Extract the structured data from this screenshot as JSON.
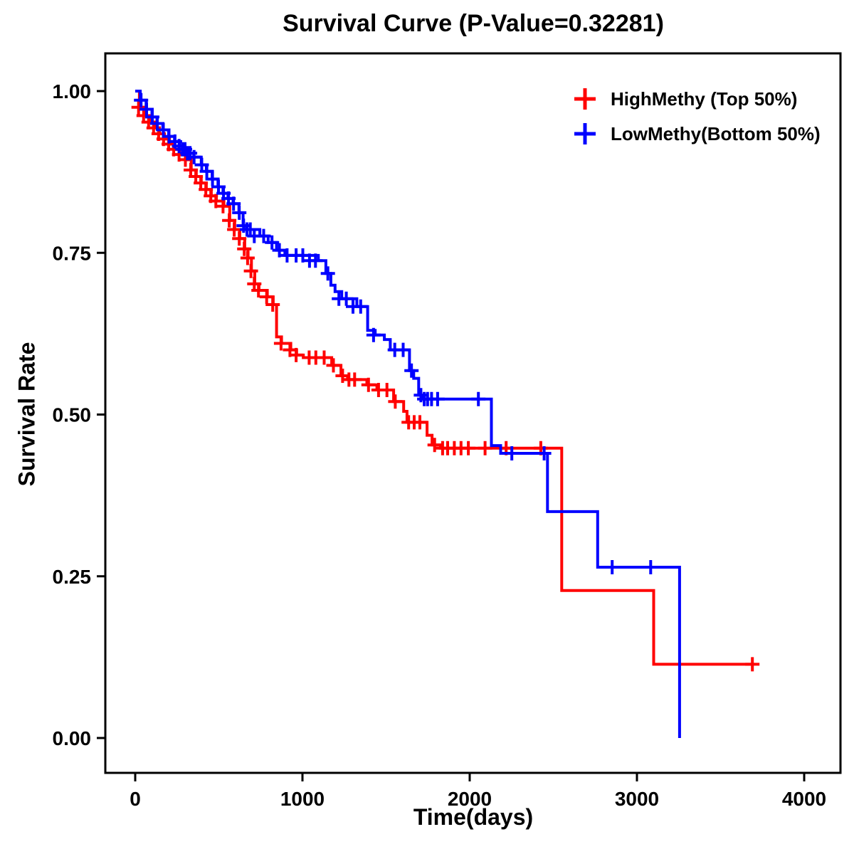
{
  "chart_data": {
    "type": "line",
    "subtype": "kaplan-meier-step",
    "title": "Survival Curve (P-Value=0.32281)",
    "xlabel": "Time(days)",
    "ylabel": "Survival Rate",
    "xlim": [
      0,
      4000
    ],
    "ylim": [
      0,
      1
    ],
    "grid": false,
    "legend_position": "top-right",
    "x_ticks": [
      {
        "value": 0,
        "label": "0"
      },
      {
        "value": 1000,
        "label": "1000"
      },
      {
        "value": 2000,
        "label": "2000"
      },
      {
        "value": 3000,
        "label": "3000"
      },
      {
        "value": 4000,
        "label": "4000"
      }
    ],
    "y_ticks": [
      {
        "value": 0.0,
        "label": "0.00"
      },
      {
        "value": 0.25,
        "label": "0.25"
      },
      {
        "value": 0.5,
        "label": "0.50"
      },
      {
        "value": 0.75,
        "label": "0.75"
      },
      {
        "value": 1.0,
        "label": "1.00"
      }
    ],
    "series": [
      {
        "name": "HighMethy (Top 50%)",
        "key": "highmethy",
        "color": "#FF0000",
        "steps": [
          [
            0,
            1.0
          ],
          [
            25,
            0.975
          ],
          [
            55,
            0.962
          ],
          [
            85,
            0.952
          ],
          [
            115,
            0.943
          ],
          [
            145,
            0.934
          ],
          [
            175,
            0.926
          ],
          [
            205,
            0.918
          ],
          [
            235,
            0.91
          ],
          [
            265,
            0.902
          ],
          [
            305,
            0.894
          ],
          [
            335,
            0.878
          ],
          [
            365,
            0.868
          ],
          [
            395,
            0.858
          ],
          [
            425,
            0.848
          ],
          [
            455,
            0.838
          ],
          [
            485,
            0.83
          ],
          [
            530,
            0.822
          ],
          [
            565,
            0.8
          ],
          [
            595,
            0.786
          ],
          [
            625,
            0.772
          ],
          [
            655,
            0.756
          ],
          [
            675,
            0.742
          ],
          [
            695,
            0.722
          ],
          [
            715,
            0.702
          ],
          [
            740,
            0.692
          ],
          [
            790,
            0.682
          ],
          [
            825,
            0.67
          ],
          [
            845,
            0.62
          ],
          [
            875,
            0.61
          ],
          [
            930,
            0.6
          ],
          [
            965,
            0.592
          ],
          [
            1005,
            0.588
          ],
          [
            1175,
            0.576
          ],
          [
            1230,
            0.56
          ],
          [
            1270,
            0.554
          ],
          [
            1385,
            0.546
          ],
          [
            1445,
            0.538
          ],
          [
            1545,
            0.52
          ],
          [
            1605,
            0.505
          ],
          [
            1625,
            0.488
          ],
          [
            1745,
            0.468
          ],
          [
            1775,
            0.453
          ],
          [
            1825,
            0.448
          ],
          [
            2550,
            0.228
          ],
          [
            3100,
            0.114
          ],
          [
            3700,
            0.114
          ]
        ],
        "censors": [
          [
            20,
            0.975
          ],
          [
            50,
            0.962
          ],
          [
            80,
            0.952
          ],
          [
            110,
            0.943
          ],
          [
            140,
            0.934
          ],
          [
            170,
            0.926
          ],
          [
            200,
            0.918
          ],
          [
            230,
            0.91
          ],
          [
            262,
            0.902
          ],
          [
            300,
            0.894
          ],
          [
            332,
            0.878
          ],
          [
            362,
            0.868
          ],
          [
            392,
            0.858
          ],
          [
            422,
            0.848
          ],
          [
            452,
            0.838
          ],
          [
            482,
            0.83
          ],
          [
            525,
            0.822
          ],
          [
            562,
            0.8
          ],
          [
            592,
            0.786
          ],
          [
            622,
            0.772
          ],
          [
            652,
            0.756
          ],
          [
            672,
            0.742
          ],
          [
            692,
            0.722
          ],
          [
            712,
            0.702
          ],
          [
            737,
            0.692
          ],
          [
            786,
            0.682
          ],
          [
            822,
            0.67
          ],
          [
            872,
            0.61
          ],
          [
            925,
            0.6
          ],
          [
            962,
            0.592
          ],
          [
            1040,
            0.588
          ],
          [
            1080,
            0.588
          ],
          [
            1130,
            0.588
          ],
          [
            1185,
            0.576
          ],
          [
            1240,
            0.56
          ],
          [
            1278,
            0.554
          ],
          [
            1312,
            0.554
          ],
          [
            1395,
            0.546
          ],
          [
            1455,
            0.538
          ],
          [
            1505,
            0.538
          ],
          [
            1555,
            0.52
          ],
          [
            1635,
            0.488
          ],
          [
            1668,
            0.488
          ],
          [
            1702,
            0.488
          ],
          [
            1790,
            0.453
          ],
          [
            1838,
            0.448
          ],
          [
            1868,
            0.448
          ],
          [
            1908,
            0.448
          ],
          [
            1948,
            0.448
          ],
          [
            1992,
            0.448
          ],
          [
            2092,
            0.448
          ],
          [
            2218,
            0.448
          ],
          [
            2425,
            0.448
          ],
          [
            3690,
            0.114
          ]
        ]
      },
      {
        "name": "LowMethy(Bottom 50%)",
        "key": "lowmethy",
        "color": "#0000FF",
        "steps": [
          [
            0,
            1.0
          ],
          [
            30,
            0.986
          ],
          [
            65,
            0.972
          ],
          [
            100,
            0.96
          ],
          [
            130,
            0.95
          ],
          [
            165,
            0.94
          ],
          [
            200,
            0.93
          ],
          [
            235,
            0.922
          ],
          [
            265,
            0.915
          ],
          [
            290,
            0.91
          ],
          [
            320,
            0.904
          ],
          [
            350,
            0.898
          ],
          [
            395,
            0.886
          ],
          [
            425,
            0.876
          ],
          [
            460,
            0.864
          ],
          [
            495,
            0.852
          ],
          [
            525,
            0.842
          ],
          [
            555,
            0.834
          ],
          [
            585,
            0.826
          ],
          [
            620,
            0.812
          ],
          [
            645,
            0.792
          ],
          [
            665,
            0.786
          ],
          [
            745,
            0.776
          ],
          [
            795,
            0.766
          ],
          [
            845,
            0.754
          ],
          [
            895,
            0.746
          ],
          [
            1095,
            0.738
          ],
          [
            1140,
            0.718
          ],
          [
            1170,
            0.7
          ],
          [
            1195,
            0.69
          ],
          [
            1235,
            0.679
          ],
          [
            1325,
            0.667
          ],
          [
            1390,
            0.63
          ],
          [
            1435,
            0.623
          ],
          [
            1490,
            0.616
          ],
          [
            1525,
            0.6
          ],
          [
            1640,
            0.568
          ],
          [
            1665,
            0.556
          ],
          [
            1695,
            0.53
          ],
          [
            1715,
            0.524
          ],
          [
            2130,
            0.452
          ],
          [
            2185,
            0.44
          ],
          [
            2465,
            0.35
          ],
          [
            2765,
            0.264
          ],
          [
            3255,
            0.0
          ]
        ],
        "censors": [
          [
            35,
            0.986
          ],
          [
            68,
            0.972
          ],
          [
            102,
            0.96
          ],
          [
            132,
            0.95
          ],
          [
            168,
            0.94
          ],
          [
            202,
            0.93
          ],
          [
            238,
            0.922
          ],
          [
            262,
            0.915
          ],
          [
            282,
            0.91
          ],
          [
            298,
            0.91
          ],
          [
            312,
            0.904
          ],
          [
            328,
            0.904
          ],
          [
            352,
            0.898
          ],
          [
            398,
            0.886
          ],
          [
            428,
            0.876
          ],
          [
            462,
            0.864
          ],
          [
            498,
            0.852
          ],
          [
            528,
            0.842
          ],
          [
            558,
            0.834
          ],
          [
            588,
            0.826
          ],
          [
            622,
            0.812
          ],
          [
            648,
            0.792
          ],
          [
            668,
            0.786
          ],
          [
            688,
            0.786
          ],
          [
            712,
            0.776
          ],
          [
            768,
            0.776
          ],
          [
            818,
            0.766
          ],
          [
            862,
            0.754
          ],
          [
            908,
            0.746
          ],
          [
            962,
            0.746
          ],
          [
            1002,
            0.746
          ],
          [
            1042,
            0.738
          ],
          [
            1078,
            0.738
          ],
          [
            1152,
            0.718
          ],
          [
            1218,
            0.679
          ],
          [
            1262,
            0.679
          ],
          [
            1302,
            0.667
          ],
          [
            1348,
            0.667
          ],
          [
            1425,
            0.623
          ],
          [
            1552,
            0.6
          ],
          [
            1602,
            0.6
          ],
          [
            1652,
            0.568
          ],
          [
            1708,
            0.53
          ],
          [
            1728,
            0.524
          ],
          [
            1748,
            0.524
          ],
          [
            1772,
            0.524
          ],
          [
            1808,
            0.524
          ],
          [
            2052,
            0.524
          ],
          [
            2252,
            0.44
          ],
          [
            2445,
            0.44
          ],
          [
            2852,
            0.264
          ],
          [
            3082,
            0.264
          ]
        ]
      }
    ]
  }
}
